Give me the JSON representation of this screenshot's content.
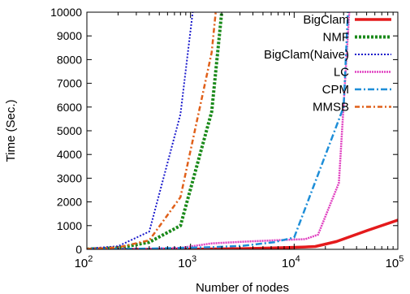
{
  "chart_data": {
    "type": "line",
    "xlabel": "Number of nodes",
    "ylabel": "Time (Sec.)",
    "xscale": "log",
    "xlim": [
      100,
      100000
    ],
    "ylim": [
      0,
      10000
    ],
    "legend_position": "top-right",
    "grid": false,
    "x_ticks": [
      {
        "value": 100,
        "base": "10",
        "exp": "2"
      },
      {
        "value": 1000,
        "base": "10",
        "exp": "3"
      },
      {
        "value": 10000,
        "base": "10",
        "exp": "4"
      },
      {
        "value": 100000,
        "base": "10",
        "exp": "5"
      }
    ],
    "y_ticks": [
      0,
      1000,
      2000,
      3000,
      4000,
      5000,
      6000,
      7000,
      8000,
      9000,
      10000
    ],
    "series": [
      {
        "name": "BigClam",
        "color": "#e41a1c",
        "dash": "",
        "width": 3.5,
        "points": [
          [
            100,
            0
          ],
          [
            200,
            2
          ],
          [
            400,
            4
          ],
          [
            800,
            8
          ],
          [
            1600,
            15
          ],
          [
            3200,
            30
          ],
          [
            6400,
            60
          ],
          [
            12800,
            100
          ],
          [
            16000,
            120
          ],
          [
            25600,
            330
          ],
          [
            51200,
            800
          ],
          [
            100000,
            1230
          ]
        ]
      },
      {
        "name": "NMF",
        "color": "#1a8a1a",
        "dash": "3,2",
        "width": 4,
        "points": [
          [
            100,
            10
          ],
          [
            200,
            60
          ],
          [
            400,
            300
          ],
          [
            800,
            1000
          ],
          [
            1600,
            5800
          ],
          [
            2000,
            10000
          ]
        ]
      },
      {
        "name": "BigClam(Naive)",
        "color": "#1a1acc",
        "dash": "2,2",
        "width": 2,
        "points": [
          [
            100,
            30
          ],
          [
            200,
            130
          ],
          [
            400,
            750
          ],
          [
            800,
            5700
          ],
          [
            1050,
            10000
          ]
        ]
      },
      {
        "name": "LC",
        "color": "#e040c0",
        "dash": "2,1",
        "width": 2.5,
        "points": [
          [
            100,
            5
          ],
          [
            200,
            10
          ],
          [
            400,
            20
          ],
          [
            800,
            60
          ],
          [
            1600,
            250
          ],
          [
            3200,
            320
          ],
          [
            6400,
            380
          ],
          [
            12800,
            430
          ],
          [
            17000,
            620
          ],
          [
            27000,
            2800
          ],
          [
            34000,
            10000
          ]
        ]
      },
      {
        "name": "CPM",
        "color": "#1e8ed8",
        "dash": "8,3,2,3",
        "width": 2.5,
        "points": [
          [
            100,
            10
          ],
          [
            200,
            20
          ],
          [
            400,
            30
          ],
          [
            800,
            60
          ],
          [
            1600,
            90
          ],
          [
            3200,
            150
          ],
          [
            6400,
            300
          ],
          [
            10000,
            500
          ],
          [
            30000,
            6000
          ],
          [
            33000,
            10000
          ]
        ]
      },
      {
        "name": "MMSB",
        "color": "#e0601a",
        "dash": "6,3,2,3",
        "width": 2.5,
        "points": [
          [
            100,
            15
          ],
          [
            200,
            80
          ],
          [
            400,
            380
          ],
          [
            800,
            2200
          ],
          [
            1600,
            8300
          ],
          [
            1750,
            10000
          ]
        ]
      }
    ]
  }
}
